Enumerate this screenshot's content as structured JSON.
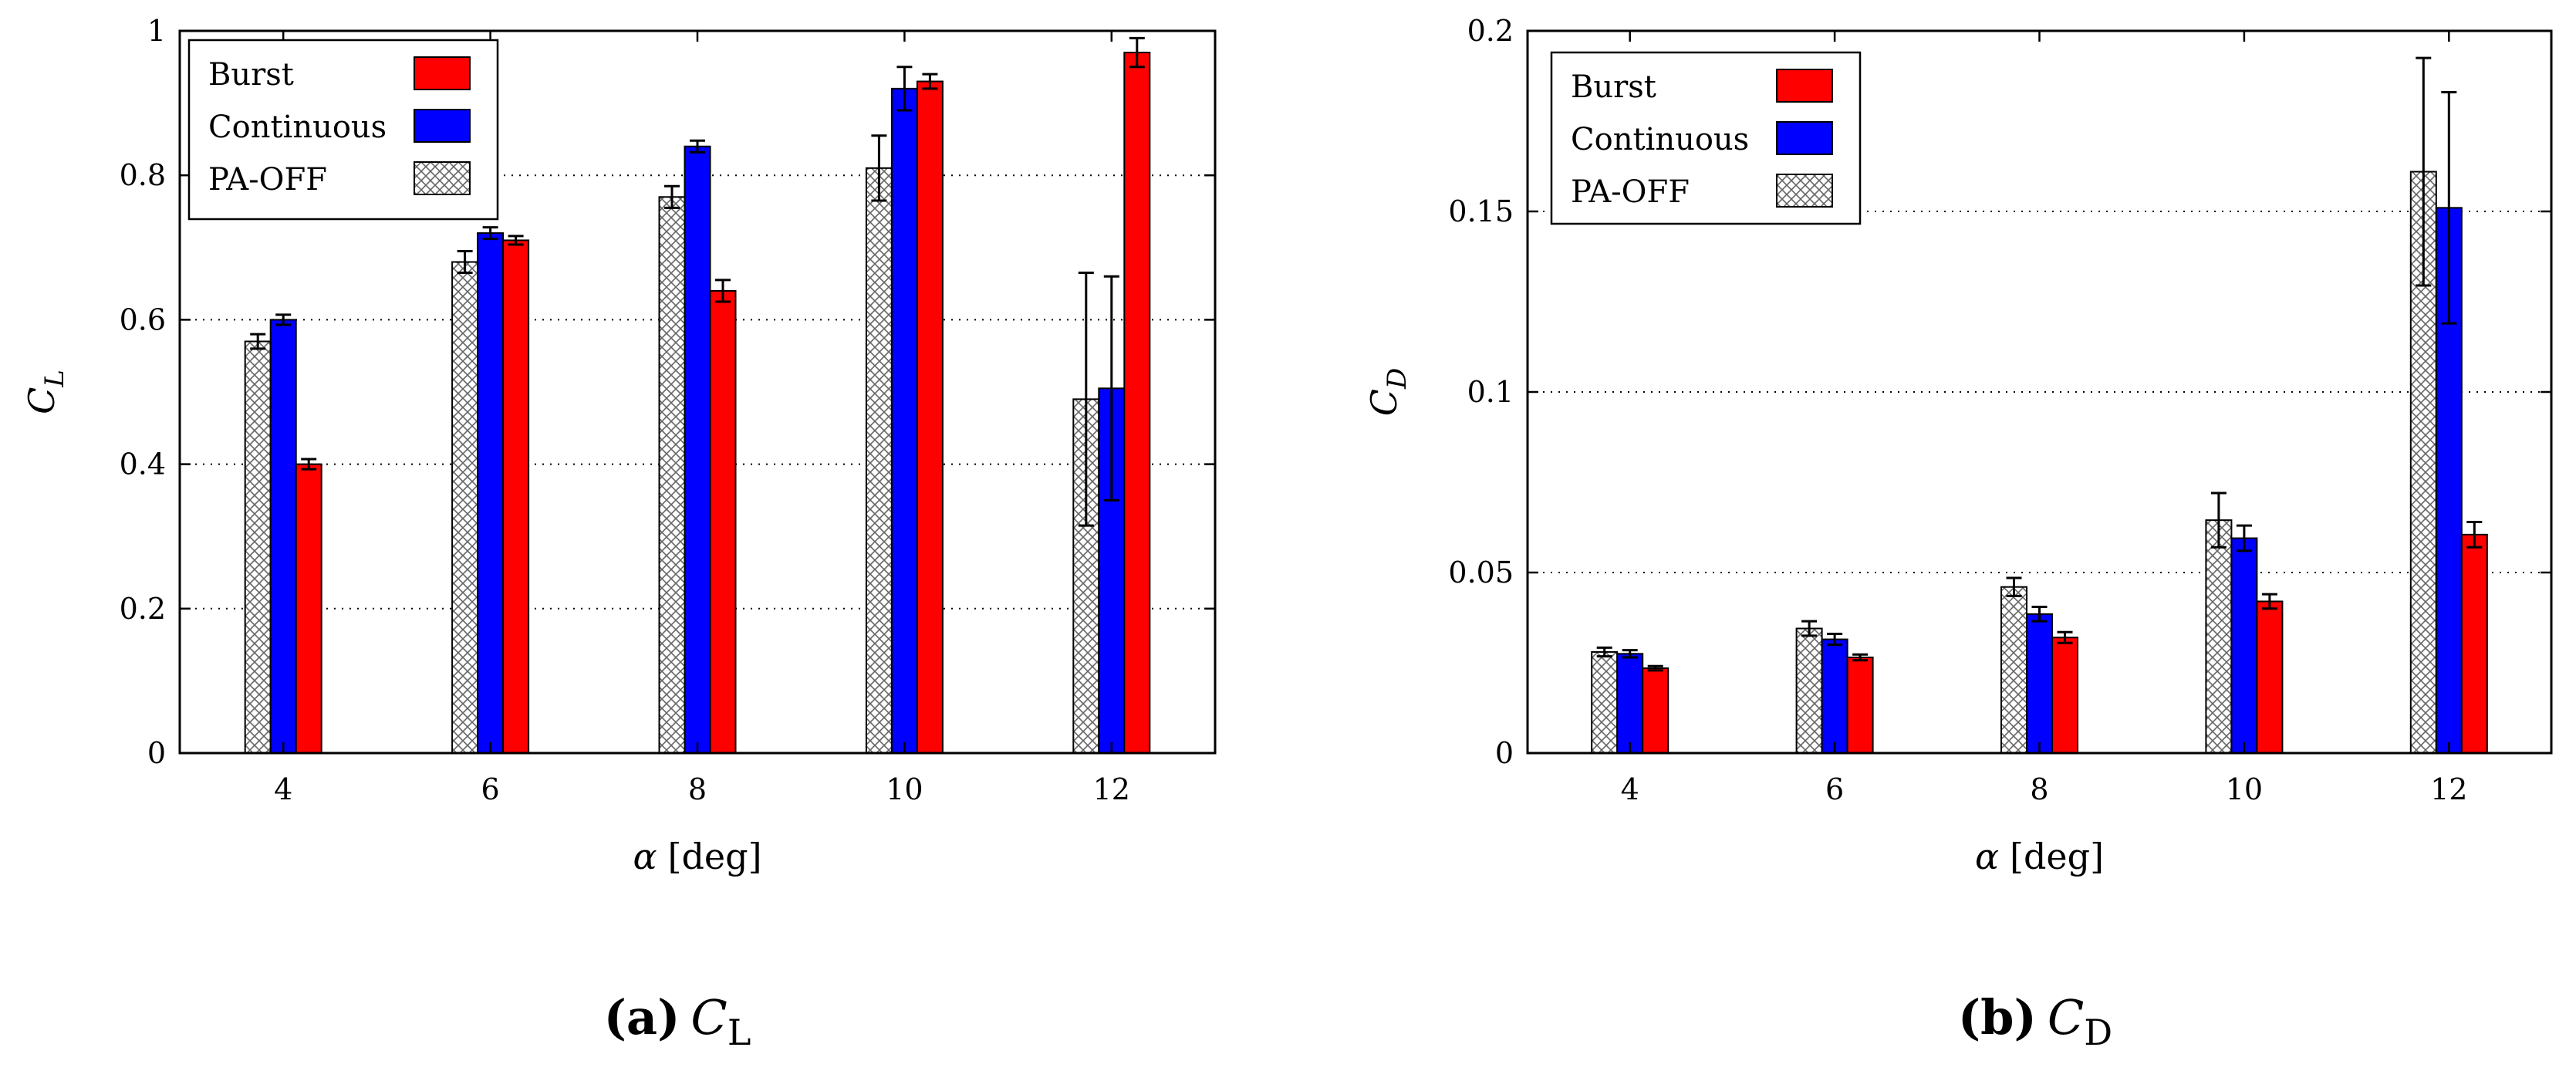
{
  "colors": {
    "burst": "#ff0000",
    "continuous": "#0000ff",
    "pa_off_fill": "#ffffff",
    "pa_off_hatch": "#555555",
    "grid": "#000000"
  },
  "chart_data": [
    {
      "id": "cl",
      "type": "bar",
      "title": "",
      "xlabel_symbol": "α",
      "xlabel_unit": "[deg]",
      "ylabel_main": "C",
      "ylabel_sub": "L",
      "categories": [
        "4",
        "6",
        "8",
        "10",
        "12"
      ],
      "ylim": [
        0,
        1
      ],
      "yticks": [
        0,
        0.2,
        0.4,
        0.6,
        0.8,
        1
      ],
      "ytick_labels": [
        "0",
        "0.2",
        "0.4",
        "0.6",
        "0.8",
        "1"
      ],
      "grid": "horizontal dotted",
      "legend_position": "top-left",
      "series": [
        {
          "name": "PA-OFF",
          "style": "hatch",
          "values": [
            0.57,
            0.68,
            0.77,
            0.81,
            0.49
          ],
          "errors": [
            0.01,
            0.015,
            0.015,
            0.045,
            0.175
          ]
        },
        {
          "name": "Continuous",
          "style": "continuous",
          "values": [
            0.6,
            0.72,
            0.84,
            0.92,
            0.505
          ],
          "errors": [
            0.007,
            0.008,
            0.008,
            0.03,
            0.155
          ]
        },
        {
          "name": "Burst",
          "style": "burst",
          "values": [
            0.4,
            0.71,
            0.64,
            0.93,
            0.97
          ],
          "errors": [
            0.007,
            0.006,
            0.015,
            0.01,
            0.02
          ]
        }
      ],
      "legend_order": [
        "Burst",
        "Continuous",
        "PA-OFF"
      ],
      "caption_letter": "(a)",
      "caption_main": "C",
      "caption_sub": "L"
    },
    {
      "id": "cd",
      "type": "bar",
      "title": "",
      "xlabel_symbol": "α",
      "xlabel_unit": "[deg]",
      "ylabel_main": "C",
      "ylabel_sub": "D",
      "categories": [
        "4",
        "6",
        "8",
        "10",
        "12"
      ],
      "ylim": [
        0,
        0.2
      ],
      "yticks": [
        0,
        0.05,
        0.1,
        0.15,
        0.2
      ],
      "ytick_labels": [
        "0",
        "0.05",
        "0.1",
        "0.15",
        "0.2"
      ],
      "grid": "horizontal dotted",
      "legend_position": "top-left",
      "series": [
        {
          "name": "PA-OFF",
          "style": "hatch",
          "values": [
            0.028,
            0.0345,
            0.046,
            0.0645,
            0.161
          ],
          "errors": [
            0.0012,
            0.002,
            0.0025,
            0.0075,
            0.0315
          ]
        },
        {
          "name": "Continuous",
          "style": "continuous",
          "values": [
            0.0275,
            0.0315,
            0.0385,
            0.0595,
            0.151
          ],
          "errors": [
            0.001,
            0.0015,
            0.002,
            0.0035,
            0.032
          ]
        },
        {
          "name": "Burst",
          "style": "burst",
          "values": [
            0.0235,
            0.0265,
            0.032,
            0.042,
            0.0605
          ],
          "errors": [
            0.0006,
            0.0008,
            0.0015,
            0.002,
            0.0035
          ]
        }
      ],
      "legend_order": [
        "Burst",
        "Continuous",
        "PA-OFF"
      ],
      "caption_letter": "(b)",
      "caption_main": "C",
      "caption_sub": "D"
    }
  ]
}
